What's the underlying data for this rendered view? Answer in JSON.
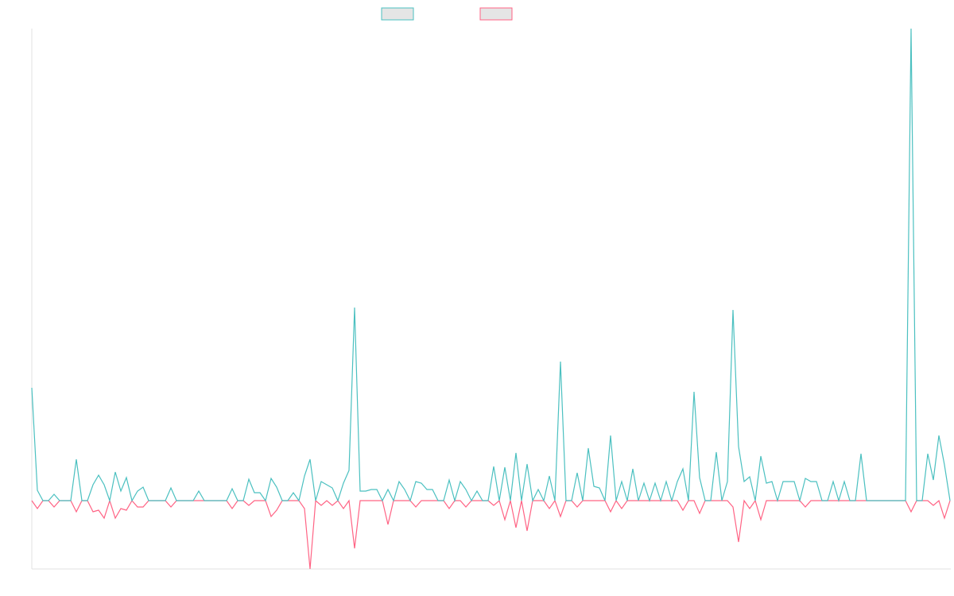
{
  "chart_data": {
    "type": "line",
    "ylim": [
      -86,
      594
    ],
    "series": [
      {
        "color": "#4bc0c0",
        "values": [
          142,
          13,
          0,
          0,
          8,
          0,
          0,
          0,
          52,
          0,
          0,
          20,
          32,
          20,
          0,
          36,
          12,
          29,
          0,
          12,
          17,
          0,
          0,
          0,
          0,
          16,
          0,
          0,
          0,
          0,
          12,
          0,
          0,
          0,
          0,
          0,
          15,
          0,
          0,
          27,
          10,
          10,
          0,
          28,
          17,
          0,
          0,
          10,
          0,
          31,
          52,
          0,
          24,
          20,
          16,
          0,
          22,
          38,
          243,
          12,
          12,
          14,
          14,
          0,
          14,
          0,
          24,
          14,
          0,
          24,
          22,
          14,
          14,
          0,
          0,
          26,
          0,
          24,
          14,
          0,
          12,
          0,
          0,
          43,
          0,
          42,
          0,
          60,
          0,
          46,
          0,
          14,
          0,
          31,
          0,
          175,
          0,
          0,
          35,
          0,
          66,
          18,
          16,
          0,
          82,
          0,
          24,
          0,
          40,
          0,
          22,
          0,
          22,
          0,
          24,
          0,
          24,
          40,
          0,
          137,
          29,
          0,
          0,
          61,
          0,
          24,
          240,
          68,
          24,
          30,
          0,
          56,
          22,
          24,
          0,
          24,
          24,
          24,
          0,
          28,
          24,
          24,
          0,
          0,
          24,
          0,
          24,
          0,
          0,
          59,
          0,
          0,
          0,
          0,
          0,
          0,
          0,
          0,
          594,
          0,
          0,
          59,
          26,
          82,
          45,
          0
        ]
      },
      {
        "color": "#ff6384",
        "values": [
          0,
          -10,
          0,
          0,
          -8,
          0,
          0,
          0,
          -14,
          0,
          0,
          -14,
          -12,
          -22,
          0,
          -22,
          -10,
          -12,
          0,
          -8,
          -8,
          0,
          0,
          0,
          0,
          -8,
          0,
          0,
          0,
          0,
          0,
          0,
          0,
          0,
          0,
          0,
          -10,
          0,
          0,
          -6,
          0,
          0,
          0,
          -20,
          -12,
          0,
          0,
          0,
          0,
          -10,
          -86,
          0,
          -6,
          0,
          -6,
          0,
          -10,
          0,
          -60,
          0,
          0,
          0,
          0,
          0,
          -30,
          0,
          0,
          0,
          0,
          -8,
          0,
          0,
          0,
          0,
          0,
          -10,
          0,
          0,
          -8,
          0,
          0,
          0,
          0,
          -6,
          0,
          -24,
          0,
          -34,
          0,
          -38,
          0,
          0,
          0,
          -10,
          0,
          -20,
          0,
          0,
          -8,
          0,
          0,
          0,
          0,
          0,
          -14,
          0,
          -10,
          0,
          0,
          0,
          0,
          0,
          0,
          0,
          0,
          0,
          0,
          -12,
          0,
          0,
          -16,
          0,
          0,
          0,
          0,
          0,
          -8,
          -52,
          0,
          -10,
          0,
          -24,
          0,
          0,
          0,
          0,
          0,
          0,
          0,
          -8,
          0,
          0,
          0,
          0,
          0,
          0,
          0,
          0,
          0,
          0,
          0,
          0,
          0,
          0,
          0,
          0,
          0,
          0,
          -14,
          0,
          0,
          0,
          -6,
          0,
          -22,
          0
        ]
      }
    ]
  }
}
